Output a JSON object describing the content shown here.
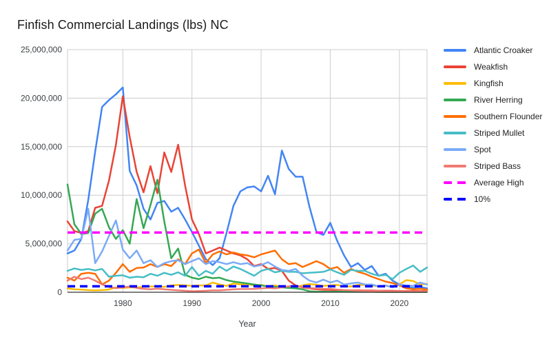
{
  "chart": {
    "title": "Finfish Commercial Landings (lbs) NC",
    "x_axis_title": "Year",
    "y_ticks": [
      {
        "value": 0,
        "label": "0"
      },
      {
        "value": 5000000,
        "label": "5,000,000"
      },
      {
        "value": 10000000,
        "label": "10,000,000"
      },
      {
        "value": 15000000,
        "label": "15,000,000"
      },
      {
        "value": 20000000,
        "label": "20,000,000"
      },
      {
        "value": 25000000,
        "label": "25,000,000"
      }
    ],
    "x_ticks": [
      {
        "value": 1980,
        "label": "1980"
      },
      {
        "value": 1990,
        "label": "1990"
      },
      {
        "value": 2000,
        "label": "2000"
      },
      {
        "value": 2010,
        "label": "2010"
      },
      {
        "value": 2020,
        "label": "2020"
      }
    ],
    "colors": {
      "grid": "#cccccc",
      "axis_line": "#333333",
      "tick_text": "#3c4043",
      "title_text": "#1a1a1a",
      "legend_text": "#212121"
    }
  },
  "chart_data": {
    "type": "line",
    "title": "Finfish Commercial Landings (lbs) NC",
    "xlabel": "Year",
    "ylabel": "",
    "xlim": [
      1972,
      2024
    ],
    "ylim": [
      0,
      25000000
    ],
    "grid": true,
    "legend_position": "right",
    "x": [
      1972,
      1973,
      1974,
      1975,
      1976,
      1977,
      1978,
      1979,
      1980,
      1981,
      1982,
      1983,
      1984,
      1985,
      1986,
      1987,
      1988,
      1989,
      1990,
      1991,
      1992,
      1993,
      1994,
      1995,
      1996,
      1997,
      1998,
      1999,
      2000,
      2001,
      2002,
      2003,
      2004,
      2005,
      2006,
      2007,
      2008,
      2009,
      2010,
      2011,
      2012,
      2013,
      2014,
      2015,
      2016,
      2017,
      2018,
      2019,
      2020,
      2021,
      2022,
      2023,
      2024
    ],
    "series": [
      {
        "name": "Atlantic Croaker",
        "color": "#4285F4",
        "style": "solid",
        "values": [
          4000000,
          4300000,
          5500000,
          9500000,
          14500000,
          19100000,
          19800000,
          20400000,
          21100000,
          12500000,
          11000000,
          8600000,
          7500000,
          9200000,
          9400000,
          8300000,
          8700000,
          7500000,
          6200000,
          4800000,
          3400000,
          2800000,
          3500000,
          6100000,
          8900000,
          10400000,
          10800000,
          10900000,
          10400000,
          12000000,
          10100000,
          14600000,
          12700000,
          11900000,
          11900000,
          8800000,
          6200000,
          5900000,
          7150000,
          5300000,
          3800000,
          2600000,
          3000000,
          2300000,
          2700000,
          1700000,
          1900000,
          1200000,
          800000,
          550000,
          450000,
          550000,
          400000
        ]
      },
      {
        "name": "Weakfish",
        "color": "#EA4335",
        "style": "solid",
        "values": [
          7300000,
          6300000,
          6100000,
          6300000,
          8700000,
          8900000,
          11500000,
          15200000,
          20200000,
          16000000,
          12400000,
          10300000,
          13000000,
          10200000,
          14400000,
          12400000,
          15200000,
          11000000,
          7500000,
          6000000,
          4000000,
          4300000,
          4600000,
          4300000,
          4000000,
          3800000,
          3400000,
          2700000,
          2900000,
          2400000,
          2500000,
          2200000,
          1200000,
          700000,
          500000,
          400000,
          300000,
          250000,
          250000,
          200000,
          200000,
          200000,
          200000,
          180000,
          180000,
          150000,
          150000,
          150000,
          120000,
          120000,
          120000,
          120000,
          120000
        ]
      },
      {
        "name": "Kingfish",
        "color": "#FBBC04",
        "style": "solid",
        "values": [
          400000,
          300000,
          280000,
          220000,
          200000,
          220000,
          280000,
          500000,
          450000,
          500000,
          500000,
          550000,
          600000,
          600000,
          550000,
          700000,
          750000,
          700000,
          650000,
          700000,
          700000,
          1000000,
          800000,
          650000,
          900000,
          800000,
          850000,
          700000,
          750000,
          600000,
          700000,
          550000,
          600000,
          500000,
          700000,
          850000,
          760000,
          650000,
          700000,
          760000,
          600000,
          600000,
          750000,
          760000,
          700000,
          600000,
          650000,
          600000,
          800000,
          1250000,
          1150000,
          800000,
          850000
        ]
      },
      {
        "name": "River Herring",
        "color": "#34A853",
        "style": "solid",
        "values": [
          11100000,
          7000000,
          6000000,
          6100000,
          8100000,
          8600000,
          6700000,
          5500000,
          6400000,
          5000000,
          9600000,
          6600000,
          9000000,
          11600000,
          7300000,
          3500000,
          4500000,
          1800000,
          1500000,
          1350000,
          1600000,
          1450000,
          1500000,
          1250000,
          1100000,
          1000000,
          900000,
          800000,
          700000,
          600000,
          550000,
          500000,
          450000,
          400000,
          300000,
          100000,
          60000,
          50000,
          50000,
          50000,
          50000,
          40000,
          40000,
          40000,
          40000,
          30000,
          30000,
          30000,
          30000,
          30000,
          30000,
          30000,
          30000
        ]
      },
      {
        "name": "Southern Flounder",
        "color": "#FF6D01",
        "style": "solid",
        "values": [
          1500000,
          1200000,
          1900000,
          2000000,
          1900000,
          800000,
          1200000,
          2000000,
          2900000,
          2100000,
          2500000,
          2550000,
          2900000,
          2600000,
          2900000,
          2700000,
          3400000,
          2900000,
          4000000,
          4400000,
          3000000,
          3900000,
          4200000,
          3900000,
          4100000,
          3900000,
          3800000,
          3600000,
          3900000,
          4100000,
          4300000,
          3400000,
          2900000,
          3000000,
          2600000,
          2900000,
          3200000,
          2900000,
          2400000,
          2600000,
          2000000,
          2400000,
          2100000,
          1900000,
          1600000,
          1350000,
          1100000,
          950000,
          700000,
          400000,
          300000,
          350000,
          280000
        ]
      },
      {
        "name": "Striped Mullet",
        "color": "#46BDC6",
        "style": "solid",
        "values": [
          2200000,
          2450000,
          2300000,
          2400000,
          2250000,
          2400000,
          1600000,
          1700000,
          1750000,
          1500000,
          1600000,
          1550000,
          1900000,
          1700000,
          2000000,
          1800000,
          2050000,
          1700000,
          2600000,
          1700000,
          2200000,
          1900000,
          2650000,
          2200000,
          2650000,
          2400000,
          2050000,
          1700000,
          2200000,
          2400000,
          2050000,
          2200000,
          2100000,
          2100000,
          1950000,
          2000000,
          2050000,
          2100000,
          2350000,
          2050000,
          1800000,
          2300000,
          2200000,
          2200000,
          1900000,
          1700000,
          1800000,
          1350000,
          2000000,
          2400000,
          2750000,
          2100000,
          2550000
        ]
      },
      {
        "name": "Spot",
        "color": "#7BAAF7",
        "style": "solid",
        "values": [
          4300000,
          5400000,
          5500000,
          8600000,
          3000000,
          4200000,
          5800000,
          7400000,
          4400000,
          3500000,
          4300000,
          3000000,
          3300000,
          2600000,
          3000000,
          3200000,
          3300000,
          2900000,
          3200000,
          3500000,
          2900000,
          3200000,
          3100000,
          2900000,
          3100000,
          2900000,
          3000000,
          2650000,
          2800000,
          3100000,
          2650000,
          2300000,
          2200000,
          2400000,
          1700000,
          1200000,
          1000000,
          1300000,
          1000000,
          1200000,
          800000,
          900000,
          1000000,
          800000,
          800000,
          600000,
          700000,
          500000,
          800000,
          700000,
          650000,
          1000000,
          800000
        ]
      },
      {
        "name": "Striped Bass",
        "color": "#F07B72",
        "style": "solid",
        "values": [
          1200000,
          1600000,
          1350000,
          1500000,
          1200000,
          800000,
          550000,
          420000,
          500000,
          600000,
          450000,
          350000,
          300000,
          370000,
          300000,
          250000,
          200000,
          150000,
          100000,
          120000,
          150000,
          200000,
          200000,
          250000,
          300000,
          330000,
          330000,
          350000,
          400000,
          450000,
          400000,
          500000,
          620000,
          600000,
          550000,
          450000,
          380000,
          350000,
          350000,
          280000,
          230000,
          200000,
          160000,
          140000,
          120000,
          120000,
          100000,
          100000,
          100000,
          100000,
          100000,
          100000,
          100000
        ]
      },
      {
        "name": "Average High",
        "color": "#FF00FF",
        "style": "dashed",
        "constant": 6150000
      },
      {
        "name": "10%",
        "color": "#0000FF",
        "style": "dashed",
        "constant": 615000
      }
    ]
  }
}
